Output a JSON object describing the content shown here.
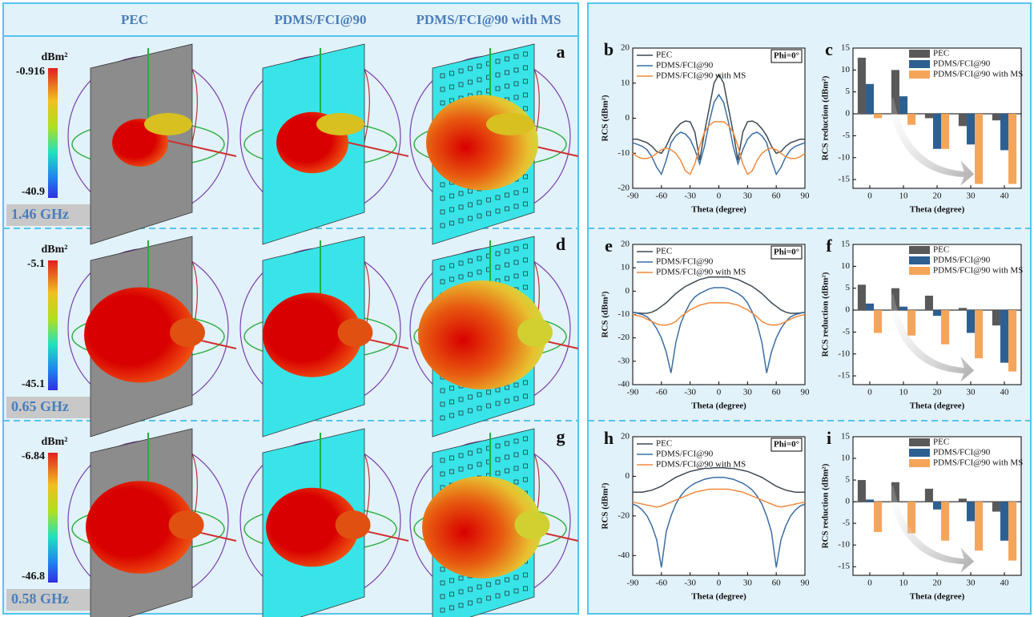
{
  "panels": {
    "columns": [
      "PEC",
      "PDMS/FCI@90",
      "PDMS/FCI@90 with MS"
    ],
    "rows": [
      {
        "letter": "a",
        "unit": "dBm²",
        "max": "-0.916",
        "min": "-40.9",
        "frequency": "1.46 GHz"
      },
      {
        "letter": "d",
        "unit": "dBm²",
        "max": "-5.1",
        "min": "-45.1",
        "frequency": "0.65 GHz"
      },
      {
        "letter": "g",
        "unit": "dBm²",
        "max": "-6.84",
        "min": "-46.8",
        "frequency": "0.58 GHz"
      }
    ]
  },
  "chart_data": [
    {
      "type": "line",
      "label": "b",
      "annotation": "Phi=0°",
      "xlabel": "Theta (degree)",
      "ylabel": "RCS (dBm²)",
      "x": [
        -90,
        -85,
        -80,
        -75,
        -70,
        -65,
        -60,
        -55,
        -50,
        -45,
        -40,
        -35,
        -30,
        -25,
        -20,
        -15,
        -10,
        -5,
        0,
        5,
        10,
        15,
        20,
        25,
        30,
        35,
        40,
        45,
        50,
        55,
        60,
        65,
        70,
        75,
        80,
        85,
        90
      ],
      "xlim": [
        -90,
        90
      ],
      "xticks": [
        -90,
        -60,
        -30,
        0,
        30,
        60,
        90
      ],
      "ylim": [
        -20,
        20
      ],
      "yticks": [
        -20,
        -10,
        0,
        10,
        20
      ],
      "series": [
        {
          "name": "PEC",
          "color": "#3d4a55",
          "values": [
            -6,
            -6,
            -6.5,
            -7,
            -8,
            -9.5,
            -10,
            -8,
            -5,
            -3,
            -1.5,
            -0.8,
            -1,
            -4,
            -12,
            -4,
            3,
            10,
            12.5,
            10,
            3,
            -4,
            -12,
            -4,
            -1,
            -0.8,
            -1.5,
            -3,
            -5,
            -8,
            -10,
            -9.5,
            -8,
            -7,
            -6.5,
            -6,
            -6
          ]
        },
        {
          "name": "PDMS/FCI@90",
          "color": "#3a6ea5",
          "values": [
            -7,
            -7.5,
            -8,
            -9,
            -11,
            -14,
            -16,
            -12,
            -7,
            -5,
            -4,
            -4.5,
            -6,
            -9,
            -13,
            -8,
            -1,
            4.5,
            6.7,
            4.5,
            -1,
            -8,
            -13,
            -9,
            -6,
            -4.5,
            -4,
            -5,
            -7,
            -12,
            -16,
            -14,
            -11,
            -9,
            -8,
            -7.5,
            -7
          ]
        },
        {
          "name": "PDMS/FCI@90 with MS",
          "color": "#f08a3c",
          "values": [
            -10,
            -11,
            -11.5,
            -11.5,
            -11,
            -10,
            -9,
            -8.5,
            -9,
            -10,
            -12,
            -15,
            -16,
            -13,
            -8,
            -4,
            -2,
            -1,
            -1,
            -1,
            -2,
            -4,
            -8,
            -13,
            -16,
            -15,
            -12,
            -10,
            -9,
            -8.5,
            -9,
            -10,
            -11,
            -11.5,
            -11.5,
            -11,
            -10
          ]
        }
      ]
    },
    {
      "type": "bar",
      "label": "c",
      "xlabel": "Theta (degree)",
      "ylabel": "RCS reduction (dBm²)",
      "categories": [
        "0",
        "10",
        "20",
        "30",
        "40"
      ],
      "ylim": [
        -17,
        15
      ],
      "yticks": [
        -15,
        -10,
        -5,
        0,
        5,
        10,
        15
      ],
      "series": [
        {
          "name": "PEC",
          "color": "#595959",
          "values": [
            12.8,
            10,
            -1,
            -2.8,
            -1.5
          ]
        },
        {
          "name": "PDMS/FCI@90",
          "color": "#2e5f91",
          "values": [
            6.8,
            4,
            -8,
            -7,
            -8.3
          ]
        },
        {
          "name": "PDMS/FCI@90 with MS",
          "color": "#f5a55a",
          "values": [
            -1,
            -2.5,
            -8,
            -16,
            -16
          ]
        }
      ]
    },
    {
      "type": "line",
      "label": "e",
      "annotation": "Phi=0°",
      "xlabel": "Theta (degree)",
      "ylabel": "RCS (dBm²)",
      "x": [
        -90,
        -85,
        -80,
        -75,
        -70,
        -65,
        -60,
        -55,
        -50,
        -45,
        -40,
        -35,
        -30,
        -25,
        -20,
        -15,
        -10,
        -5,
        0,
        5,
        10,
        15,
        20,
        25,
        30,
        35,
        40,
        45,
        50,
        55,
        60,
        65,
        70,
        75,
        80,
        85,
        90
      ],
      "xlim": [
        -90,
        90
      ],
      "xticks": [
        -90,
        -60,
        -30,
        0,
        30,
        60,
        90
      ],
      "ylim": [
        -40,
        20
      ],
      "yticks": [
        -40,
        -30,
        -20,
        -10,
        0,
        10,
        20
      ],
      "series": [
        {
          "name": "PEC",
          "color": "#3d4a55",
          "values": [
            -9,
            -9.3,
            -9.5,
            -9.5,
            -9,
            -8,
            -6.5,
            -5,
            -3,
            -1,
            0.5,
            2,
            3,
            4,
            5,
            5.5,
            6,
            6,
            6,
            6,
            6,
            5.5,
            5,
            4,
            3,
            2,
            0.5,
            -1,
            -3,
            -5,
            -6.5,
            -8,
            -9,
            -9.5,
            -9.5,
            -9.3,
            -9
          ]
        },
        {
          "name": "PDMS/FCI@90",
          "color": "#3a6ea5",
          "values": [
            -9,
            -9.5,
            -10,
            -11,
            -13,
            -16,
            -20,
            -26,
            -35,
            -22,
            -14,
            -9,
            -5,
            -2.5,
            -1,
            0,
            1,
            1.5,
            1.5,
            1.5,
            1,
            0,
            -1,
            -2.5,
            -5,
            -9,
            -14,
            -22,
            -35,
            -26,
            -20,
            -16,
            -13,
            -11,
            -10,
            -9.5,
            -9
          ]
        },
        {
          "name": "PDMS/FCI@90 with MS",
          "color": "#f08a3c",
          "values": [
            -10,
            -10.5,
            -11,
            -12,
            -13,
            -14,
            -14.5,
            -14.5,
            -14,
            -13,
            -11,
            -9.5,
            -8,
            -7,
            -6,
            -5.5,
            -5,
            -5,
            -5,
            -5,
            -5,
            -5.5,
            -6,
            -7,
            -8,
            -9.5,
            -11,
            -13,
            -14,
            -14.5,
            -14.5,
            -14,
            -13,
            -12,
            -11,
            -10.5,
            -10
          ]
        }
      ]
    },
    {
      "type": "bar",
      "label": "f",
      "xlabel": "Theta (degree)",
      "ylabel": "RCS reduction (dBm²)",
      "categories": [
        "0",
        "10",
        "20",
        "30",
        "40"
      ],
      "ylim": [
        -17,
        15
      ],
      "yticks": [
        -15,
        -10,
        -5,
        0,
        5,
        10,
        15
      ],
      "series": [
        {
          "name": "PEC",
          "color": "#595959",
          "values": [
            5.8,
            5,
            3.3,
            0.5,
            -3.5
          ]
        },
        {
          "name": "PDMS/FCI@90",
          "color": "#2e5f91",
          "values": [
            1.5,
            0.8,
            -1.3,
            -5.2,
            -12
          ]
        },
        {
          "name": "PDMS/FCI@90 with MS",
          "color": "#f5a55a",
          "values": [
            -5.2,
            -5.8,
            -7.8,
            -11,
            -14
          ]
        }
      ]
    },
    {
      "type": "line",
      "label": "h",
      "annotation": "Phi=0°",
      "xlabel": "Theta (degree)",
      "ylabel": "RCS (dBm²)",
      "x": [
        -90,
        -85,
        -80,
        -75,
        -70,
        -65,
        -60,
        -55,
        -50,
        -45,
        -40,
        -35,
        -30,
        -25,
        -20,
        -15,
        -10,
        -5,
        0,
        5,
        10,
        15,
        20,
        25,
        30,
        35,
        40,
        45,
        50,
        55,
        60,
        65,
        70,
        75,
        80,
        85,
        90
      ],
      "xlim": [
        -90,
        90
      ],
      "xticks": [
        -90,
        -60,
        -30,
        0,
        30,
        60,
        90
      ],
      "ylim": [
        -50,
        20
      ],
      "yticks": [
        -40,
        -20,
        0,
        20
      ],
      "series": [
        {
          "name": "PEC",
          "color": "#3d4a55",
          "values": [
            -8,
            -8,
            -8,
            -7.5,
            -7,
            -6,
            -5,
            -3.5,
            -2,
            -0.5,
            0.5,
            1.5,
            2.5,
            3,
            3.5,
            4,
            4,
            4.3,
            4.3,
            4.3,
            4,
            4,
            3.5,
            3,
            2.5,
            1.5,
            0.5,
            -0.5,
            -2,
            -3.5,
            -5,
            -6,
            -7,
            -7.5,
            -8,
            -8,
            -8
          ]
        },
        {
          "name": "PDMS/FCI@90",
          "color": "#3a6ea5",
          "values": [
            -14,
            -15,
            -17,
            -20,
            -25,
            -32,
            -46,
            -28,
            -20,
            -14,
            -10,
            -7,
            -5,
            -3.5,
            -2.5,
            -1.5,
            -1,
            -0.5,
            -0.5,
            -0.5,
            -1,
            -1.5,
            -2.5,
            -3.5,
            -5,
            -7,
            -10,
            -14,
            -20,
            -28,
            -46,
            -32,
            -25,
            -20,
            -17,
            -15,
            -14
          ]
        },
        {
          "name": "PDMS/FCI@90 with MS",
          "color": "#f08a3c",
          "values": [
            -13,
            -13.5,
            -14,
            -14.5,
            -15,
            -15.5,
            -15,
            -14,
            -13,
            -12,
            -11,
            -10,
            -9,
            -8,
            -7.5,
            -7,
            -6.5,
            -6.5,
            -6.5,
            -6.5,
            -6.5,
            -7,
            -7.5,
            -8,
            -9,
            -10,
            -11,
            -12,
            -13,
            -14,
            -15,
            -15.5,
            -15,
            -14.5,
            -14,
            -13.5,
            -13
          ]
        }
      ]
    },
    {
      "type": "bar",
      "label": "i",
      "xlabel": "Theta (degree)",
      "ylabel": "RCS reduction (dBm²)",
      "categories": [
        "0",
        "10",
        "20",
        "30",
        "40"
      ],
      "ylim": [
        -17,
        15
      ],
      "yticks": [
        -15,
        -10,
        -5,
        0,
        5,
        10,
        15
      ],
      "series": [
        {
          "name": "PEC",
          "color": "#595959",
          "values": [
            5,
            4.5,
            3,
            0.7,
            -2.3
          ]
        },
        {
          "name": "PDMS/FCI@90",
          "color": "#2e5f91",
          "values": [
            0.5,
            0,
            -1.8,
            -4.5,
            -9
          ]
        },
        {
          "name": "PDMS/FCI@90 with MS",
          "color": "#f5a55a",
          "values": [
            -7,
            -7.3,
            -9,
            -11.3,
            -13.6
          ]
        }
      ]
    }
  ]
}
